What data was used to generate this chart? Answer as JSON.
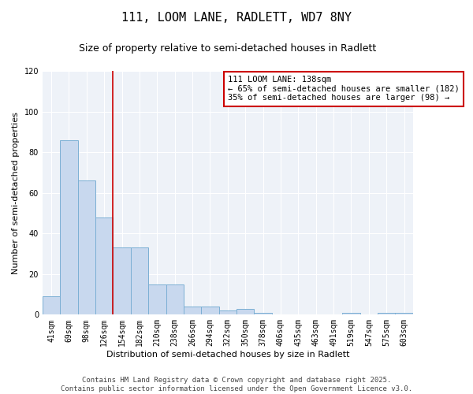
{
  "title": "111, LOOM LANE, RADLETT, WD7 8NY",
  "subtitle": "Size of property relative to semi-detached houses in Radlett",
  "xlabel": "Distribution of semi-detached houses by size in Radlett",
  "ylabel": "Number of semi-detached properties",
  "categories": [
    "41sqm",
    "69sqm",
    "98sqm",
    "126sqm",
    "154sqm",
    "182sqm",
    "210sqm",
    "238sqm",
    "266sqm",
    "294sqm",
    "322sqm",
    "350sqm",
    "378sqm",
    "406sqm",
    "435sqm",
    "463sqm",
    "491sqm",
    "519sqm",
    "547sqm",
    "575sqm",
    "603sqm"
  ],
  "values": [
    9,
    86,
    66,
    48,
    33,
    33,
    15,
    15,
    4,
    4,
    2,
    3,
    1,
    0,
    0,
    0,
    0,
    1,
    0,
    1,
    1
  ],
  "bar_color": "#c8d8ee",
  "bar_edge_color": "#7bafd4",
  "vline_x_index": 3.5,
  "vline_color": "#cc0000",
  "annotation_text": "111 LOOM LANE: 138sqm\n← 65% of semi-detached houses are smaller (182)\n35% of semi-detached houses are larger (98) →",
  "annotation_box_color": "white",
  "annotation_box_edge_color": "#cc0000",
  "ylim": [
    0,
    120
  ],
  "yticks": [
    0,
    20,
    40,
    60,
    80,
    100,
    120
  ],
  "footer": "Contains HM Land Registry data © Crown copyright and database right 2025.\nContains public sector information licensed under the Open Government Licence v3.0.",
  "background_color": "#eef2f8",
  "grid_color": "#ffffff",
  "title_fontsize": 11,
  "subtitle_fontsize": 9,
  "axis_label_fontsize": 8,
  "tick_fontsize": 7,
  "footer_fontsize": 6.5,
  "annotation_fontsize": 7.5
}
